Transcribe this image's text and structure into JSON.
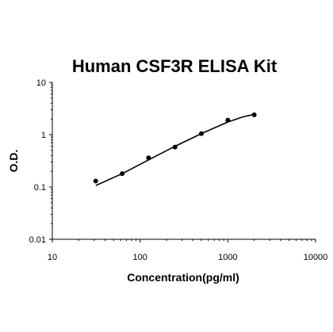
{
  "chart_data": {
    "type": "scatter",
    "title": "Human CSF3R ELISA Kit",
    "xlabel": "Concentration(pg/ml)",
    "ylabel": "O.D.",
    "x_scale": "log",
    "y_scale": "log",
    "xlim": [
      10,
      10000
    ],
    "ylim": [
      0.01,
      10
    ],
    "x_ticks": [
      "10",
      "100",
      "1000",
      "10000"
    ],
    "y_ticks": [
      "10",
      "1",
      "0.1",
      "0.01"
    ],
    "grid": false,
    "legend": "none",
    "series": [
      {
        "points": [
          {
            "x": 31.25,
            "y": 0.13
          },
          {
            "x": 62.5,
            "y": 0.18
          },
          {
            "x": 125,
            "y": 0.36
          },
          {
            "x": 250,
            "y": 0.58
          },
          {
            "x": 500,
            "y": 1.05
          },
          {
            "x": 1000,
            "y": 1.9
          },
          {
            "x": 2000,
            "y": 2.4
          }
        ]
      }
    ],
    "fit_curve": {
      "points": [
        {
          "x": 31.25,
          "y": 0.107
        },
        {
          "x": 62.5,
          "y": 0.18
        },
        {
          "x": 125,
          "y": 0.33
        },
        {
          "x": 250,
          "y": 0.6
        },
        {
          "x": 500,
          "y": 1.05
        },
        {
          "x": 1000,
          "y": 1.75
        },
        {
          "x": 1500,
          "y": 2.2
        },
        {
          "x": 2000,
          "y": 2.45
        }
      ]
    },
    "colors": {
      "marks": "#000000",
      "axis": "#000000"
    }
  }
}
